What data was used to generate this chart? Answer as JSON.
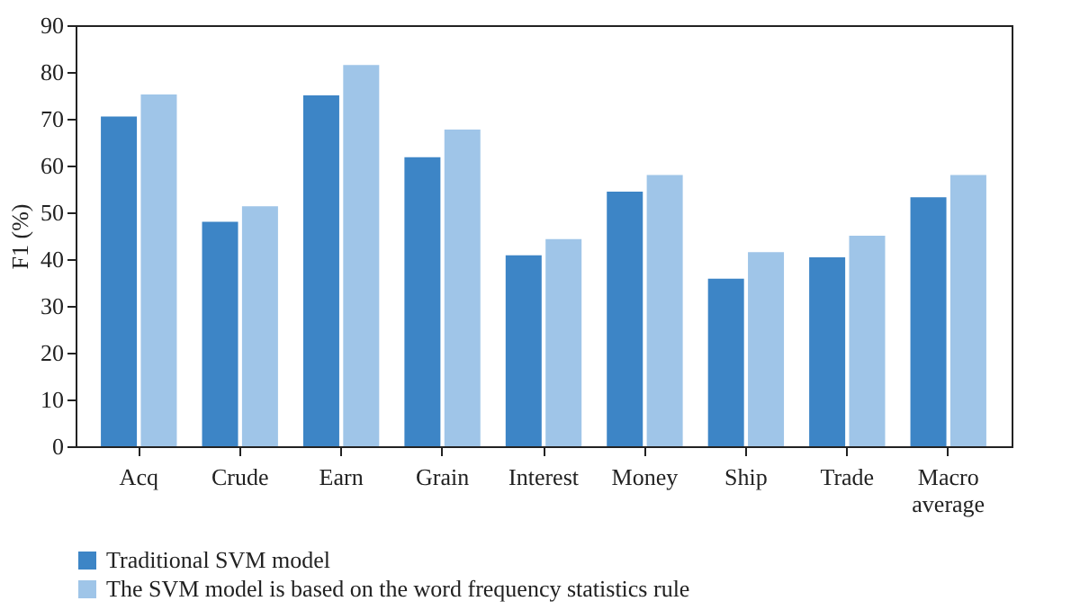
{
  "chart_data": {
    "type": "bar",
    "ylabel": "F1 (%)",
    "categories": [
      "Acq",
      "Crude",
      "Earn",
      "Grain",
      "Interest",
      "Money",
      "Ship",
      "Trade",
      "Macro average"
    ],
    "series": [
      {
        "name": "Traditional SVM model",
        "color": "#3d85c6",
        "values": [
          70.5,
          48,
          75,
          61.8,
          40.8,
          54.4,
          35.8,
          40.4,
          53.2
        ]
      },
      {
        "name": "The SVM model is based on the word frequency statistics rule",
        "color": "#9fc5e8",
        "values": [
          75.2,
          51.3,
          81.5,
          67.7,
          44.3,
          58,
          41.5,
          45,
          58
        ]
      }
    ],
    "ylim": [
      0,
      90
    ],
    "yticks": [
      0,
      10,
      20,
      30,
      40,
      50,
      60,
      70,
      80,
      90
    ],
    "grid": false,
    "legend": "bottom"
  }
}
